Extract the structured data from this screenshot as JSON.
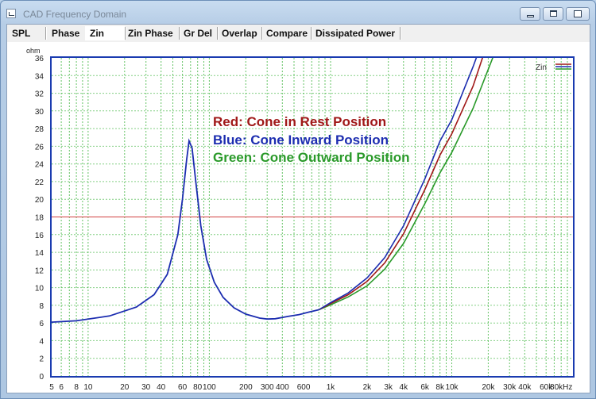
{
  "window": {
    "title": "CAD Frequency Domain"
  },
  "tabs": [
    {
      "label": "SPL",
      "active": false
    },
    {
      "label": "Phase",
      "active": false
    },
    {
      "label": "Zin",
      "active": true
    },
    {
      "label": "Zin Phase",
      "active": false
    },
    {
      "label": "Gr Del",
      "active": false
    },
    {
      "label": "Overlap",
      "active": false
    },
    {
      "label": "Compare",
      "active": false
    },
    {
      "label": "Dissipated Power",
      "active": false
    }
  ],
  "colors": {
    "red": "#a01818",
    "blue": "#1c2db0",
    "green": "#2a9a2a",
    "axis": "#1a3bb0",
    "grid": "#34b034",
    "refline": "#d04040"
  },
  "chart_data": {
    "type": "line",
    "xscale": "log",
    "xlim": [
      5,
      100000
    ],
    "ylim": [
      0,
      36
    ],
    "yunit": "ohm",
    "xunit": "Hz",
    "reference_line_y": 18,
    "legend_label": "Zin",
    "yticks": [
      0,
      2,
      4,
      6,
      8,
      10,
      12,
      14,
      16,
      18,
      20,
      22,
      24,
      26,
      28,
      30,
      32,
      34,
      36
    ],
    "xtick_labels": [
      {
        "x": 5,
        "label": "5"
      },
      {
        "x": 6,
        "label": "6"
      },
      {
        "x": 8,
        "label": "8"
      },
      {
        "x": 10,
        "label": "10"
      },
      {
        "x": 20,
        "label": "20"
      },
      {
        "x": 30,
        "label": "30"
      },
      {
        "x": 40,
        "label": "40"
      },
      {
        "x": 60,
        "label": "60"
      },
      {
        "x": 80,
        "label": "80"
      },
      {
        "x": 100,
        "label": "100"
      },
      {
        "x": 200,
        "label": "200"
      },
      {
        "x": 300,
        "label": "300"
      },
      {
        "x": 400,
        "label": "400"
      },
      {
        "x": 600,
        "label": "600"
      },
      {
        "x": 1000,
        "label": "1k"
      },
      {
        "x": 2000,
        "label": "2k"
      },
      {
        "x": 3000,
        "label": "3k"
      },
      {
        "x": 4000,
        "label": "4k"
      },
      {
        "x": 6000,
        "label": "6k"
      },
      {
        "x": 8000,
        "label": "8k"
      },
      {
        "x": 10000,
        "label": "10k"
      },
      {
        "x": 20000,
        "label": "20k"
      },
      {
        "x": 30000,
        "label": "30k"
      },
      {
        "x": 40000,
        "label": "40k"
      },
      {
        "x": 60000,
        "label": "60k"
      },
      {
        "x": 80000,
        "label": "80kHz"
      }
    ],
    "annotations": [
      {
        "text": "Red: Cone in Rest Position",
        "color": "#a01818"
      },
      {
        "text": "Blue: Cone Inward Position",
        "color": "#1c2db0"
      },
      {
        "text": "Green: Cone Outward Position",
        "color": "#2a9a2a"
      }
    ],
    "common": [
      [
        5,
        6.1
      ],
      [
        8,
        6.25
      ],
      [
        15,
        6.8
      ],
      [
        25,
        7.8
      ],
      [
        35,
        9.2
      ],
      [
        45,
        11.5
      ],
      [
        55,
        16
      ],
      [
        60,
        20
      ],
      [
        65,
        24.5
      ],
      [
        68,
        26.6
      ],
      [
        72,
        25.8
      ],
      [
        78,
        21.5
      ],
      [
        85,
        17
      ],
      [
        95,
        13.2
      ],
      [
        110,
        10.6
      ],
      [
        130,
        8.9
      ],
      [
        160,
        7.7
      ],
      [
        200,
        7.0
      ],
      [
        260,
        6.55
      ],
      [
        300,
        6.45
      ],
      [
        350,
        6.48
      ],
      [
        450,
        6.75
      ],
      [
        550,
        6.95
      ],
      [
        650,
        7.2
      ],
      [
        800,
        7.5
      ]
    ],
    "series": [
      {
        "name": "Red",
        "color": "#a01818",
        "values": [
          [
            800,
            7.5
          ],
          [
            1000,
            8.2
          ],
          [
            1400,
            9.2
          ],
          [
            2000,
            10.7
          ],
          [
            2800,
            12.8
          ],
          [
            4000,
            16.1
          ],
          [
            6000,
            21.1
          ],
          [
            8000,
            25.0
          ],
          [
            10000,
            27.4
          ],
          [
            15000,
            32.8
          ],
          [
            19500,
            37.5
          ]
        ]
      },
      {
        "name": "Blue",
        "color": "#1c2db0",
        "values": [
          [
            800,
            7.5
          ],
          [
            1000,
            8.3
          ],
          [
            1400,
            9.4
          ],
          [
            2000,
            11.1
          ],
          [
            2800,
            13.4
          ],
          [
            4000,
            17.0
          ],
          [
            6000,
            22.3
          ],
          [
            8000,
            26.6
          ],
          [
            10000,
            29.0
          ],
          [
            15000,
            35.0
          ],
          [
            17500,
            37.5
          ]
        ]
      },
      {
        "name": "Green",
        "color": "#2a9a2a",
        "values": [
          [
            800,
            7.5
          ],
          [
            1000,
            8.05
          ],
          [
            1400,
            8.95
          ],
          [
            2000,
            10.2
          ],
          [
            2800,
            12.1
          ],
          [
            4000,
            15.0
          ],
          [
            6000,
            19.5
          ],
          [
            8000,
            23.0
          ],
          [
            10000,
            25.3
          ],
          [
            15000,
            30.3
          ],
          [
            24000,
            37.5
          ]
        ]
      }
    ]
  }
}
